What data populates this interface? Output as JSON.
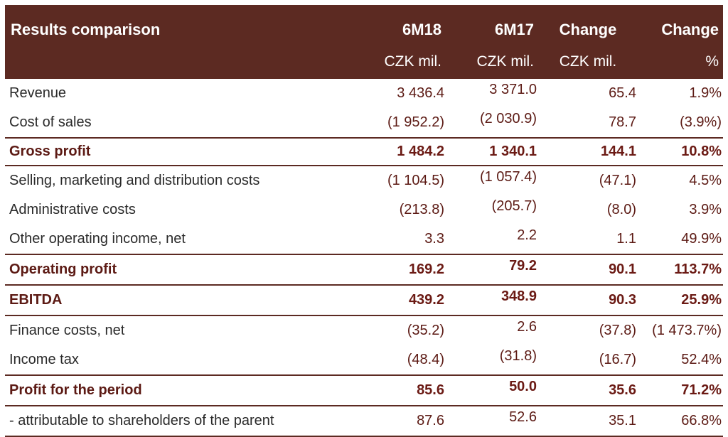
{
  "header": {
    "title": "Results comparison",
    "columns": [
      "6M18",
      "6M17",
      "Change",
      "Change"
    ],
    "units": [
      "CZK mil.",
      "CZK mil.",
      "CZK mil.",
      "%"
    ]
  },
  "rows": [
    {
      "label": "Revenue",
      "values": [
        "3 436.4",
        "3 371.0",
        "65.4",
        "1.9%"
      ]
    },
    {
      "label": "Cost of sales",
      "values": [
        "(1 952.2)",
        "(2 030.9)",
        "78.7",
        "(3.9%)"
      ]
    },
    {
      "label": "Gross profit",
      "values": [
        "1 484.2",
        "1 340.1",
        "144.1",
        "10.8%"
      ]
    },
    {
      "label": "Selling, marketing and distribution costs",
      "values": [
        "(1 104.5)",
        "(1 057.4)",
        "(47.1)",
        "4.5%"
      ]
    },
    {
      "label": "Administrative costs",
      "values": [
        "(213.8)",
        "(205.7)",
        "(8.0)",
        "3.9%"
      ]
    },
    {
      "label": "Other operating income, net",
      "values": [
        "3.3",
        "2.2",
        "1.1",
        "49.9%"
      ]
    },
    {
      "label": "Operating profit",
      "values": [
        "169.2",
        "79.2",
        "90.1",
        "113.7%"
      ]
    },
    {
      "label": "EBITDA",
      "values": [
        "439.2",
        "348.9",
        "90.3",
        "25.9%"
      ]
    },
    {
      "label": "Finance costs, net",
      "values": [
        "(35.2)",
        "2.6",
        "(37.8)",
        "(1 473.7%)"
      ]
    },
    {
      "label": "Income tax",
      "values": [
        "(48.4)",
        "(31.8)",
        "(16.7)",
        "52.4%"
      ]
    },
    {
      "label": "Profit for the period",
      "values": [
        "85.6",
        "50.0",
        "35.6",
        "71.2%"
      ]
    },
    {
      "label": "- attributable to shareholders of the parent",
      "values": [
        "87.6",
        "52.6",
        "35.1",
        "66.8%"
      ]
    }
  ],
  "colors": {
    "header_bg": "#5c2a22",
    "value_text": "#5c1a14"
  }
}
